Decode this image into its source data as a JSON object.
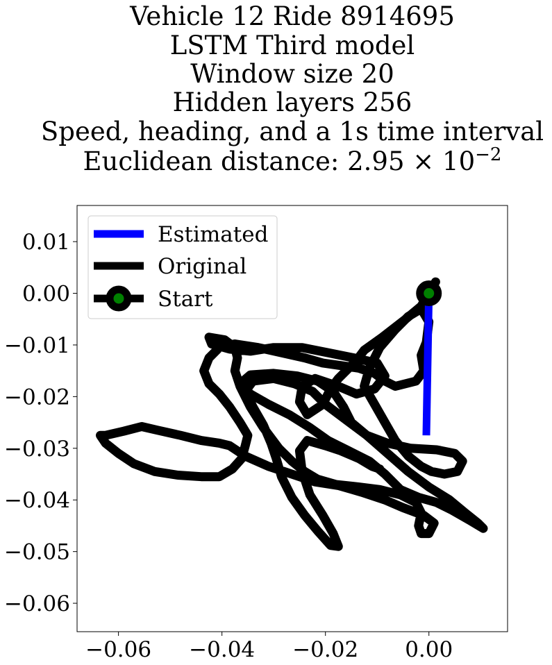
{
  "chart_data": {
    "type": "line",
    "title_lines": [
      "Vehicle 12 Ride 8914695",
      "LSTM Third model",
      "Window size 20",
      "Hidden layers 256",
      "Speed, heading, and a 1s time interval",
      "Euclidean distance: 2.95×10⁻²"
    ],
    "title_math": {
      "prefix": "Euclidean distance: ",
      "mantissa": "2.95",
      "times": "×",
      "base": "10",
      "exponent": "−2"
    },
    "xlabel": "",
    "ylabel": "",
    "xlim": [
      -0.068,
      0.0152
    ],
    "ylim": [
      -0.0655,
      0.017
    ],
    "xticks": [
      -0.06,
      -0.04,
      -0.02,
      0.0
    ],
    "xtick_labels": [
      "−0.06",
      "−0.04",
      "−0.02",
      "0.00"
    ],
    "yticks": [
      0.01,
      0.0,
      -0.01,
      -0.02,
      -0.03,
      -0.04,
      -0.05,
      -0.06
    ],
    "ytick_labels": [
      "0.01",
      "0.00",
      "−0.01",
      "−0.02",
      "−0.03",
      "−0.04",
      "−0.05",
      "−0.06"
    ],
    "grid": false,
    "legend_position": "upper-left",
    "series": [
      {
        "name": "Estimated",
        "color": "#0000ff",
        "points": [
          [
            0.0,
            0.0
          ],
          [
            -0.0005,
            -0.0275
          ]
        ]
      },
      {
        "name": "Original",
        "color": "#000000",
        "points": [
          [
            0.0013,
            0.0022
          ],
          [
            0.0,
            0.0
          ],
          [
            -0.0015,
            -0.0025
          ],
          [
            -0.0045,
            -0.005
          ],
          [
            -0.009,
            -0.0085
          ],
          [
            -0.0125,
            -0.011
          ],
          [
            -0.014,
            -0.013
          ],
          [
            -0.0175,
            -0.0165
          ],
          [
            -0.019,
            -0.0185
          ],
          [
            -0.0205,
            -0.0215
          ],
          [
            -0.0235,
            -0.0235
          ],
          [
            -0.025,
            -0.021
          ],
          [
            -0.0245,
            -0.018
          ],
          [
            -0.022,
            -0.0165
          ],
          [
            -0.0175,
            -0.018
          ],
          [
            -0.014,
            -0.0195
          ],
          [
            -0.0105,
            -0.0185
          ],
          [
            -0.0085,
            -0.016
          ],
          [
            -0.01,
            -0.0135
          ],
          [
            -0.0145,
            -0.0125
          ],
          [
            -0.0195,
            -0.0115
          ],
          [
            -0.0245,
            -0.0105
          ],
          [
            -0.03,
            -0.0105
          ],
          [
            -0.0345,
            -0.0112
          ],
          [
            -0.0385,
            -0.0108
          ],
          [
            -0.042,
            -0.0098
          ],
          [
            -0.0425,
            -0.0085
          ],
          [
            -0.0395,
            -0.009
          ],
          [
            -0.0375,
            -0.0105
          ],
          [
            -0.037,
            -0.0125
          ],
          [
            -0.0375,
            -0.015
          ],
          [
            -0.0365,
            -0.018
          ],
          [
            -0.0345,
            -0.022
          ],
          [
            -0.032,
            -0.026
          ],
          [
            -0.029,
            -0.03
          ],
          [
            -0.0265,
            -0.0325
          ],
          [
            -0.024,
            -0.0345
          ],
          [
            -0.0215,
            -0.036
          ],
          [
            -0.018,
            -0.037
          ],
          [
            -0.0135,
            -0.0375
          ],
          [
            -0.0095,
            -0.038
          ],
          [
            -0.0055,
            -0.039
          ],
          [
            -0.0025,
            -0.0405
          ],
          [
            -0.0015,
            -0.0425
          ],
          [
            -0.002,
            -0.045
          ],
          [
            -0.0015,
            -0.0465
          ],
          [
            0.0,
            -0.0465
          ],
          [
            0.001,
            -0.0445
          ],
          [
            -0.001,
            -0.043
          ],
          [
            -0.005,
            -0.0415
          ],
          [
            -0.0085,
            -0.04
          ],
          [
            -0.013,
            -0.0385
          ],
          [
            -0.0175,
            -0.0372
          ],
          [
            -0.022,
            -0.0365
          ],
          [
            -0.0265,
            -0.035
          ],
          [
            -0.031,
            -0.0335
          ],
          [
            -0.0355,
            -0.0315
          ],
          [
            -0.0385,
            -0.0295
          ],
          [
            -0.0405,
            -0.029
          ],
          [
            -0.044,
            -0.0285
          ],
          [
            -0.048,
            -0.0275
          ],
          [
            -0.0525,
            -0.0265
          ],
          [
            -0.0555,
            -0.0258
          ],
          [
            -0.059,
            -0.0267
          ],
          [
            -0.0625,
            -0.0275
          ],
          [
            -0.0635,
            -0.0275
          ],
          [
            -0.0625,
            -0.029
          ],
          [
            -0.06,
            -0.031
          ],
          [
            -0.057,
            -0.033
          ],
          [
            -0.053,
            -0.0345
          ],
          [
            -0.0485,
            -0.0352
          ],
          [
            -0.044,
            -0.0355
          ],
          [
            -0.0405,
            -0.0355
          ],
          [
            -0.038,
            -0.034
          ],
          [
            -0.0362,
            -0.032
          ],
          [
            -0.0355,
            -0.0295
          ],
          [
            -0.035,
            -0.0275
          ],
          [
            -0.0365,
            -0.025
          ],
          [
            -0.0385,
            -0.022
          ],
          [
            -0.0405,
            -0.0195
          ],
          [
            -0.0425,
            -0.0175
          ],
          [
            -0.0435,
            -0.015
          ],
          [
            -0.0425,
            -0.0125
          ],
          [
            -0.0405,
            -0.0105
          ],
          [
            -0.0375,
            -0.0098
          ],
          [
            -0.033,
            -0.0105
          ],
          [
            -0.0285,
            -0.0115
          ],
          [
            -0.024,
            -0.0125
          ],
          [
            -0.0205,
            -0.0135
          ],
          [
            -0.017,
            -0.014
          ],
          [
            -0.0135,
            -0.0145
          ],
          [
            -0.0105,
            -0.0155
          ],
          [
            -0.0085,
            -0.017
          ],
          [
            -0.0065,
            -0.018
          ],
          [
            -0.0025,
            -0.017
          ],
          [
            -0.001,
            -0.015
          ],
          [
            -0.0015,
            -0.012
          ],
          [
            -0.0005,
            -0.0095
          ],
          [
            0.0,
            -0.0055
          ],
          [
            -0.0015,
            -0.003
          ],
          [
            -0.004,
            -0.0045
          ],
          [
            -0.0065,
            -0.007
          ],
          [
            -0.0095,
            -0.0105
          ],
          [
            -0.0115,
            -0.0145
          ],
          [
            -0.0125,
            -0.018
          ],
          [
            -0.0105,
            -0.0215
          ],
          [
            -0.0085,
            -0.025
          ],
          [
            -0.0065,
            -0.0285
          ],
          [
            -0.004,
            -0.0315
          ],
          [
            -0.0015,
            -0.0335
          ],
          [
            0.0005,
            -0.0345
          ],
          [
            0.003,
            -0.035
          ],
          [
            0.0055,
            -0.0345
          ],
          [
            0.0065,
            -0.0325
          ],
          [
            0.005,
            -0.031
          ],
          [
            0.0015,
            -0.0303
          ],
          [
            -0.0035,
            -0.03
          ],
          [
            -0.008,
            -0.029
          ],
          [
            -0.012,
            -0.0275
          ],
          [
            -0.015,
            -0.025
          ],
          [
            -0.0165,
            -0.022
          ],
          [
            -0.0185,
            -0.019
          ],
          [
            -0.0215,
            -0.017
          ],
          [
            -0.0255,
            -0.016
          ],
          [
            -0.03,
            -0.0155
          ],
          [
            -0.0345,
            -0.0158
          ],
          [
            -0.0365,
            -0.0175
          ],
          [
            -0.0345,
            -0.0195
          ],
          [
            -0.031,
            -0.0215
          ],
          [
            -0.027,
            -0.0235
          ],
          [
            -0.023,
            -0.026
          ],
          [
            -0.0195,
            -0.0285
          ],
          [
            -0.0155,
            -0.0305
          ],
          [
            -0.0115,
            -0.0325
          ],
          [
            -0.0085,
            -0.035
          ],
          [
            -0.0055,
            -0.038
          ],
          [
            -0.002,
            -0.0395
          ],
          [
            0.0015,
            -0.0405
          ],
          [
            0.0045,
            -0.042
          ],
          [
            0.008,
            -0.044
          ],
          [
            0.0105,
            -0.0455
          ],
          [
            0.0095,
            -0.0445
          ],
          [
            0.007,
            -0.0425
          ],
          [
            0.004,
            -0.04
          ],
          [
            0.0,
            -0.0375
          ],
          [
            -0.004,
            -0.0345
          ],
          [
            -0.008,
            -0.031
          ],
          [
            -0.012,
            -0.0275
          ],
          [
            -0.016,
            -0.0245
          ],
          [
            -0.02,
            -0.0215
          ],
          [
            -0.0225,
            -0.019
          ],
          [
            -0.026,
            -0.0175
          ],
          [
            -0.03,
            -0.0165
          ],
          [
            -0.034,
            -0.017
          ],
          [
            -0.0355,
            -0.019
          ],
          [
            -0.034,
            -0.022
          ],
          [
            -0.032,
            -0.0255
          ],
          [
            -0.0305,
            -0.029
          ],
          [
            -0.0295,
            -0.032
          ],
          [
            -0.0285,
            -0.0355
          ],
          [
            -0.0265,
            -0.0395
          ],
          [
            -0.024,
            -0.043
          ],
          [
            -0.0215,
            -0.046
          ],
          [
            -0.019,
            -0.0488
          ],
          [
            -0.0175,
            -0.049
          ],
          [
            -0.0185,
            -0.0465
          ],
          [
            -0.0205,
            -0.043
          ],
          [
            -0.023,
            -0.039
          ],
          [
            -0.0245,
            -0.0345
          ],
          [
            -0.025,
            -0.0305
          ],
          [
            -0.0235,
            -0.0285
          ],
          [
            -0.02,
            -0.0295
          ],
          [
            -0.017,
            -0.0305
          ],
          [
            -0.0135,
            -0.032
          ],
          [
            -0.011,
            -0.0335
          ],
          [
            -0.0095,
            -0.034
          ]
        ]
      },
      {
        "name": "Start",
        "color": "#000000",
        "marker_face": "#008000",
        "points": [
          [
            0.0,
            0.0
          ]
        ]
      }
    ]
  }
}
